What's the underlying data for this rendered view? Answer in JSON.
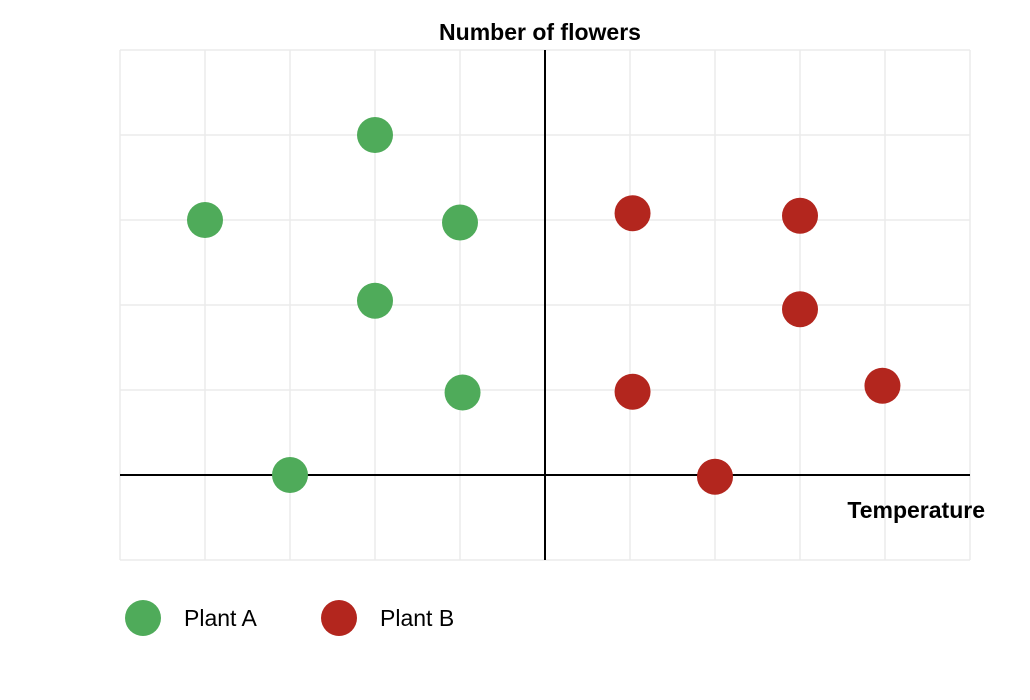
{
  "chart_data": {
    "type": "scatter",
    "title": "",
    "xlabel": "Temperature",
    "ylabel": "Number of flowers",
    "xlim": [
      -5,
      5
    ],
    "ylim": [
      -1,
      5
    ],
    "grid": true,
    "legend_position": "bottom-left",
    "series": [
      {
        "name": "Plant A",
        "color": "#4fab5a",
        "points": [
          {
            "x": -4.0,
            "y": 3.0
          },
          {
            "x": -3.0,
            "y": 0.0
          },
          {
            "x": -2.0,
            "y": 4.0
          },
          {
            "x": -2.0,
            "y": 2.05
          },
          {
            "x": -1.0,
            "y": 2.97
          },
          {
            "x": -0.97,
            "y": 0.97
          }
        ]
      },
      {
        "name": "Plant B",
        "color": "#b3261e",
        "points": [
          {
            "x": 1.03,
            "y": 3.08
          },
          {
            "x": 1.03,
            "y": 0.98
          },
          {
            "x": 2.0,
            "y": -0.02
          },
          {
            "x": 3.0,
            "y": 3.05
          },
          {
            "x": 3.0,
            "y": 1.95
          },
          {
            "x": 3.97,
            "y": 1.05
          }
        ]
      }
    ]
  }
}
